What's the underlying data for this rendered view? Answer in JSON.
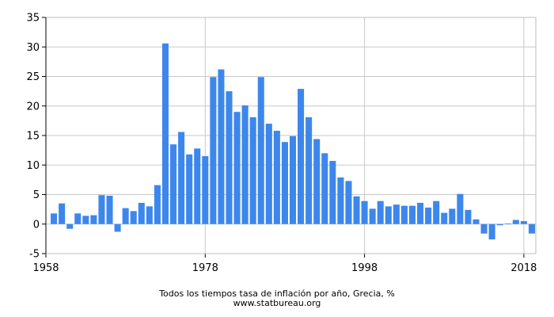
{
  "chart_data": {
    "type": "bar",
    "title": "",
    "xlabel": "",
    "ylabel": "",
    "x": [
      1959,
      1960,
      1961,
      1962,
      1963,
      1964,
      1965,
      1966,
      1967,
      1968,
      1969,
      1970,
      1971,
      1972,
      1973,
      1974,
      1975,
      1976,
      1977,
      1978,
      1979,
      1980,
      1981,
      1982,
      1983,
      1984,
      1985,
      1986,
      1987,
      1988,
      1989,
      1990,
      1991,
      1992,
      1993,
      1994,
      1995,
      1996,
      1997,
      1998,
      1999,
      2000,
      2001,
      2002,
      2003,
      2004,
      2005,
      2006,
      2007,
      2008,
      2009,
      2010,
      2011,
      2012,
      2013,
      2014,
      2015,
      2016,
      2017,
      2018,
      2019
    ],
    "values": [
      1.8,
      3.5,
      -0.8,
      1.8,
      1.4,
      1.5,
      4.9,
      4.8,
      -1.3,
      2.7,
      2.2,
      3.6,
      3.0,
      6.6,
      30.6,
      13.5,
      15.6,
      11.8,
      12.8,
      11.5,
      24.9,
      26.2,
      22.5,
      19.0,
      20.1,
      18.1,
      24.9,
      17.0,
      15.8,
      13.9,
      14.9,
      22.9,
      18.1,
      14.4,
      12.0,
      10.7,
      7.9,
      7.3,
      4.7,
      3.9,
      2.6,
      3.9,
      3.0,
      3.3,
      3.1,
      3.1,
      3.6,
      2.8,
      3.9,
      1.9,
      2.6,
      5.1,
      2.4,
      0.8,
      -1.6,
      -2.6,
      -0.2,
      0.1,
      0.7,
      0.5,
      -1.6
    ],
    "ylim": [
      -5,
      35
    ],
    "yticks": [
      -5,
      0,
      5,
      10,
      15,
      20,
      25,
      30,
      35
    ],
    "xticks": [
      1958,
      1978,
      1998,
      2018
    ],
    "xlim": [
      1958,
      2019.5
    ],
    "grid": true,
    "bar_color": "#3d87ec",
    "grid_color": "#c8c8c8"
  },
  "caption": {
    "title": "Todos los tiempos tasa de inflación por año, Grecia, %",
    "source": "www.statbureau.org"
  }
}
